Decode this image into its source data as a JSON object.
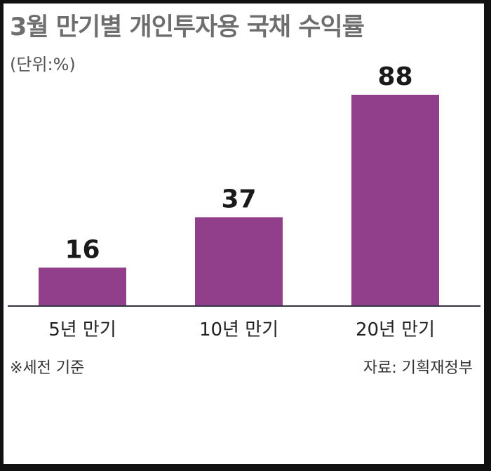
{
  "header": {
    "title": "3월 만기별 개인투자용 국채 수익률",
    "unit": "(단위:%)"
  },
  "footer": {
    "note": "※세전 기준",
    "source": "자료: 기획재정부"
  },
  "colors": {
    "bar": "#923f8b",
    "baseline": "#333344"
  },
  "chart_data": {
    "type": "bar",
    "title": "3월 만기별 개인투자용 국채 수익률",
    "unit": "(단위:%)",
    "categories": [
      "5년 만기",
      "10년 만기",
      "20년 만기"
    ],
    "values": [
      16,
      37,
      88
    ],
    "value_labels": [
      "16",
      "37",
      "88"
    ],
    "ylim": [
      0,
      88
    ],
    "grid": false,
    "legend": "none"
  }
}
